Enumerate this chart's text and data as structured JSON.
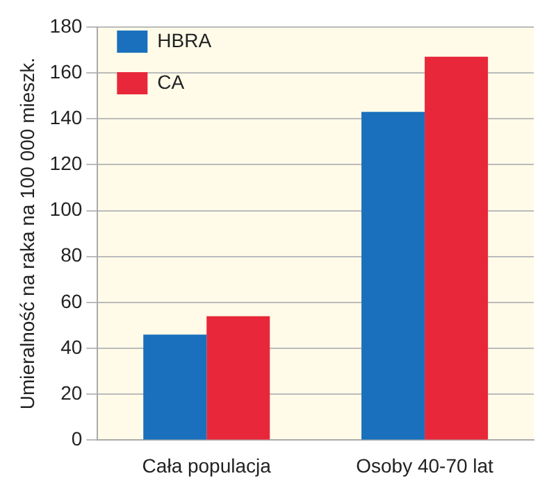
{
  "chart_data": {
    "type": "bar",
    "ylabel": "Umieralność na raka na 100 000 mieszk.",
    "categories": [
      "Cała populacja",
      "Osoby 40-70 lat"
    ],
    "series": [
      {
        "name": "HBRA",
        "color": "#1a70bd",
        "values": [
          46,
          143
        ]
      },
      {
        "name": "CA",
        "color": "#e8283a",
        "values": [
          54,
          167
        ]
      }
    ],
    "ylim": [
      0,
      180
    ],
    "yticks": [
      0,
      20,
      40,
      60,
      80,
      100,
      120,
      140,
      160,
      180
    ],
    "grid": "y",
    "legend": "top left"
  }
}
